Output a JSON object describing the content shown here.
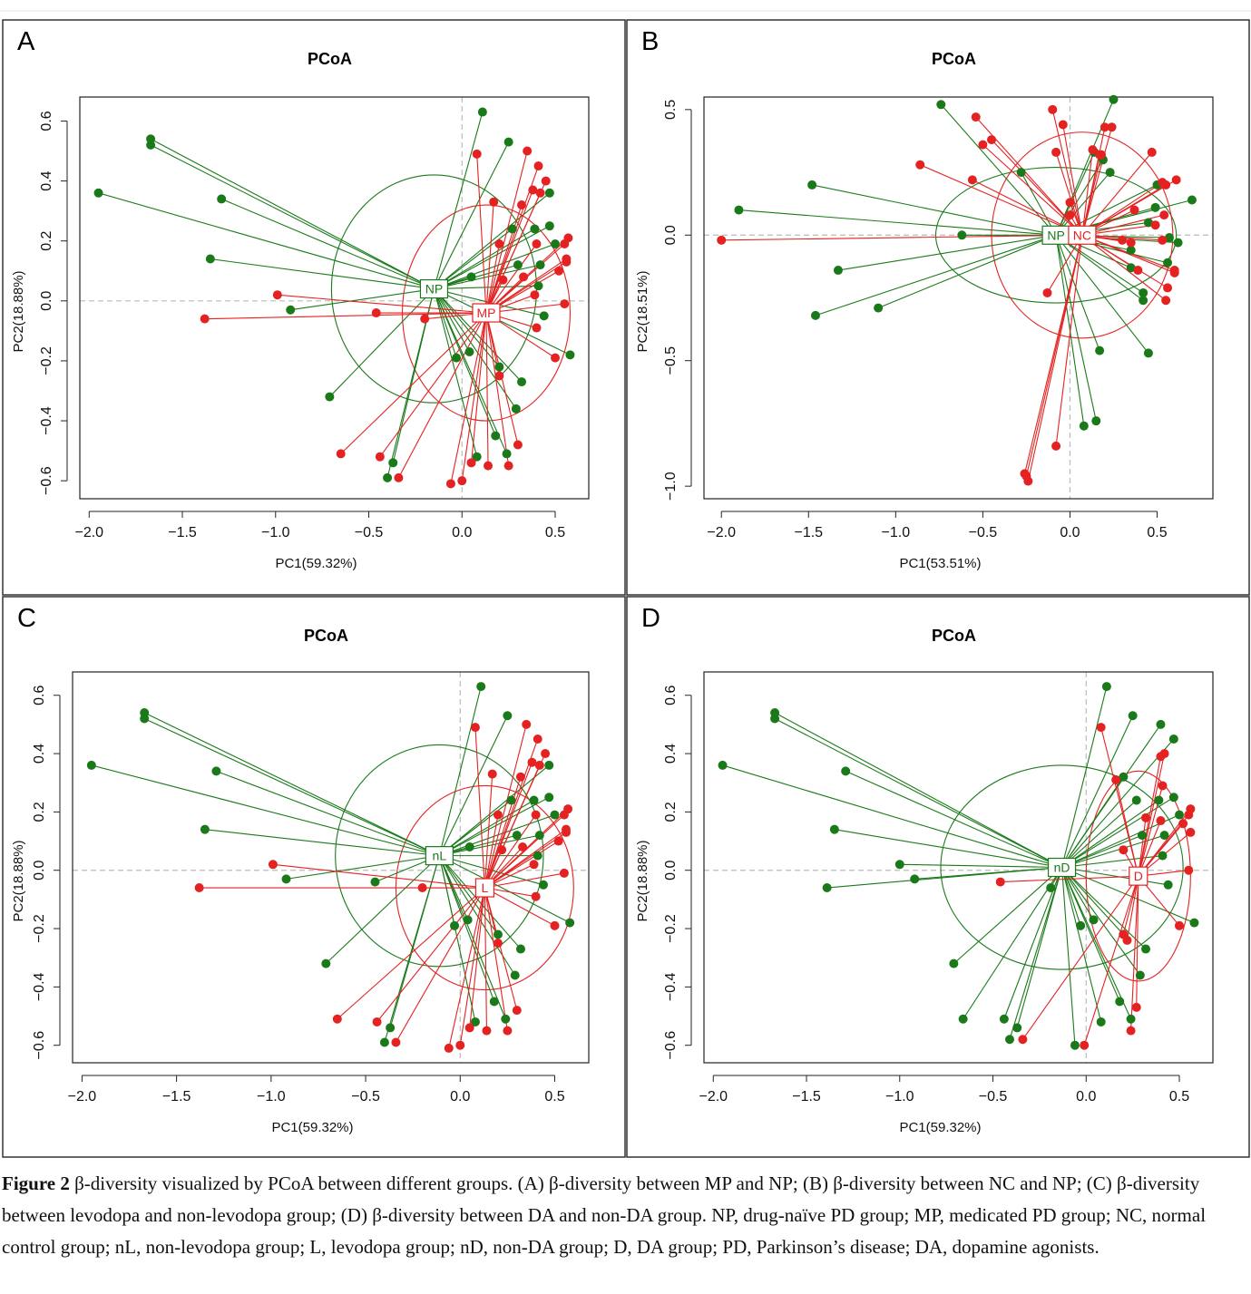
{
  "colors": {
    "group_green": "#1a7a1a",
    "group_red": "#e52222",
    "axis": "#222222",
    "guide": "#bbbbbb"
  },
  "panels": [
    {
      "letter": "A",
      "title": "PCoA",
      "xlabel": "PC1(59.32%)",
      "ylabel": "PC2(18.88%)",
      "xticks": [
        "−2.0",
        "−1.5",
        "−1.0",
        "−0.5",
        "0.0",
        "0.5"
      ],
      "yticks": [
        "−0.6",
        "−0.4",
        "−0.2",
        "0.0",
        "0.2",
        "0.4",
        "0.6"
      ],
      "groups": [
        "NP",
        "MP"
      ]
    },
    {
      "letter": "B",
      "title": "PCoA",
      "xlabel": "PC1(53.51%)",
      "ylabel": "PC2(18.51%)",
      "xticks": [
        "−2.0",
        "−1.5",
        "−1.0",
        "−0.5",
        "0.0",
        "0.5"
      ],
      "yticks": [
        "−1.0",
        "−0.5",
        "0.0",
        "0.5"
      ],
      "groups": [
        "NP",
        "NC"
      ]
    },
    {
      "letter": "C",
      "title": "PCoA",
      "xlabel": "PC1(59.32%)",
      "ylabel": "PC2(18.88%)",
      "xticks": [
        "−2.0",
        "−1.5",
        "−1.0",
        "−0.5",
        "0.0",
        "0.5"
      ],
      "yticks": [
        "−0.6",
        "−0.4",
        "−0.2",
        "0.0",
        "0.2",
        "0.4",
        "0.6"
      ],
      "groups": [
        "nL",
        "L"
      ]
    },
    {
      "letter": "D",
      "title": "PCoA",
      "xlabel": "PC1(59.32%)",
      "ylabel": "PC2(18.88%)",
      "xticks": [
        "−2.0",
        "−1.5",
        "−1.0",
        "−0.5",
        "0.0",
        "0.5"
      ],
      "yticks": [
        "−0.6",
        "−0.4",
        "−0.2",
        "0.0",
        "0.2",
        "0.4",
        "0.6"
      ],
      "groups": [
        "nD",
        "D"
      ]
    }
  ],
  "chart_data": [
    {
      "type": "scatter",
      "title": "PCoA",
      "xlabel": "PC1(59.32%)",
      "ylabel": "PC2(18.88%)",
      "xlim": [
        -2.05,
        0.68
      ],
      "ylim": [
        -0.66,
        0.68
      ],
      "grid": false,
      "series": [
        {
          "name": "NP",
          "centroid": [
            -0.15,
            0.04
          ],
          "ellipse": {
            "rx": 0.55,
            "ry": 0.38,
            "angle": 0
          },
          "x": [
            -1.67,
            -1.67,
            -1.95,
            -1.29,
            -1.35,
            -0.92,
            -0.71,
            -0.37,
            -0.4,
            0.11,
            0.25,
            0.47,
            0.27,
            0.39,
            0.47,
            0.42,
            0.41,
            0.5,
            0.3,
            0.2,
            0.32,
            0.29,
            0.24,
            0.18,
            0.04,
            0.05,
            -0.03,
            0.08,
            0.58,
            0.44
          ],
          "y": [
            0.54,
            0.52,
            0.36,
            0.34,
            0.14,
            -0.03,
            -0.32,
            -0.54,
            -0.59,
            0.63,
            0.53,
            0.36,
            0.24,
            0.24,
            0.25,
            0.12,
            0.05,
            0.19,
            0.12,
            -0.22,
            -0.27,
            -0.36,
            -0.51,
            -0.45,
            -0.17,
            0.08,
            -0.19,
            -0.52,
            -0.18,
            -0.05
          ]
        },
        {
          "name": "MP",
          "centroid": [
            0.13,
            -0.04
          ],
          "ellipse": {
            "rx": 0.45,
            "ry": 0.36,
            "angle": 0
          },
          "x": [
            -0.99,
            -1.38,
            -0.46,
            -0.2,
            -0.65,
            -0.44,
            -0.34,
            -0.06,
            0.0,
            0.14,
            0.25,
            0.3,
            0.05,
            0.08,
            0.35,
            0.41,
            0.45,
            0.42,
            0.57,
            0.55,
            0.52,
            0.56,
            0.4,
            0.17,
            0.2,
            0.22,
            0.32,
            0.4,
            0.33,
            0.2,
            0.5,
            0.38,
            0.39,
            0.55,
            0.56
          ],
          "y": [
            0.02,
            -0.06,
            -0.04,
            -0.06,
            -0.51,
            -0.52,
            -0.59,
            -0.61,
            -0.6,
            -0.55,
            -0.55,
            -0.48,
            -0.54,
            0.49,
            0.5,
            0.45,
            0.4,
            0.36,
            0.21,
            0.19,
            0.1,
            0.14,
            -0.09,
            0.33,
            0.19,
            0.07,
            0.32,
            0.19,
            0.08,
            -0.25,
            -0.19,
            0.37,
            0.02,
            -0.01,
            0.13
          ]
        }
      ]
    },
    {
      "type": "scatter",
      "title": "PCoA",
      "xlabel": "PC1(53.51%)",
      "ylabel": "PC2(18.51%)",
      "xlim": [
        -2.1,
        0.82
      ],
      "ylim": [
        -1.05,
        0.55
      ],
      "grid": false,
      "series": [
        {
          "name": "NP",
          "centroid": [
            -0.08,
            0.0
          ],
          "ellipse": {
            "rx": 0.69,
            "ry": 0.27,
            "angle": 0
          },
          "x": [
            -0.74,
            -1.9,
            -1.48,
            -1.33,
            -1.46,
            -1.1,
            -0.62,
            -0.28,
            0.25,
            0.23,
            0.19,
            0.45,
            0.5,
            0.62,
            0.7,
            0.14,
            0.35,
            0.56,
            0.42,
            0.17,
            0.45,
            0.08,
            0.15,
            0.35,
            0.57,
            0.49,
            0.42
          ],
          "y": [
            0.52,
            0.1,
            0.2,
            -0.14,
            -0.32,
            -0.29,
            0.0,
            0.25,
            0.54,
            0.25,
            0.3,
            0.05,
            0.2,
            -0.03,
            0.14,
            0.33,
            -0.13,
            -0.11,
            -0.23,
            -0.46,
            -0.47,
            -0.76,
            -0.74,
            -0.06,
            -0.01,
            0.11,
            -0.26
          ]
        },
        {
          "name": "NC",
          "centroid": [
            0.07,
            0.0
          ],
          "ellipse": {
            "rx": 0.52,
            "ry": 0.41,
            "angle": 0
          },
          "x": [
            -2.0,
            -0.86,
            -0.54,
            -0.5,
            -0.45,
            -0.56,
            -0.1,
            -0.08,
            -0.04,
            0.0,
            0.13,
            0.17,
            0.2,
            0.24,
            0.47,
            0.53,
            0.55,
            0.61,
            0.53,
            0.56,
            0.6,
            0.55,
            0.3,
            0.35,
            0.39,
            -0.26,
            -0.25,
            -0.24,
            -0.08,
            -0.13,
            0.0,
            0.18,
            0.37,
            0.54,
            0.6,
            0.49
          ],
          "y": [
            -0.02,
            0.28,
            0.47,
            0.36,
            0.38,
            0.22,
            0.5,
            0.33,
            0.44,
            0.13,
            0.34,
            0.32,
            0.43,
            0.43,
            0.33,
            0.21,
            0.2,
            0.22,
            -0.02,
            -0.21,
            -0.14,
            -0.26,
            -0.02,
            -0.03,
            -0.14,
            -0.95,
            -0.96,
            -0.98,
            -0.84,
            -0.23,
            0.08,
            0.32,
            0.1,
            0.08,
            -0.15,
            0.04
          ]
        }
      ]
    },
    {
      "type": "scatter",
      "title": "PCoA",
      "xlabel": "PC1(59.32%)",
      "ylabel": "PC2(18.88%)",
      "xlim": [
        -2.05,
        0.68
      ],
      "ylim": [
        -0.66,
        0.68
      ],
      "grid": false,
      "series": [
        {
          "name": "nL",
          "centroid": [
            -0.11,
            0.05
          ],
          "ellipse": {
            "rx": 0.55,
            "ry": 0.38,
            "angle": 0
          },
          "x": [
            -1.67,
            -1.67,
            -1.95,
            -1.29,
            -1.35,
            -0.92,
            -0.45,
            -0.71,
            -0.37,
            -0.4,
            0.11,
            0.25,
            0.47,
            0.27,
            0.39,
            0.47,
            0.42,
            0.41,
            0.5,
            0.3,
            0.2,
            0.32,
            0.29,
            0.24,
            0.18,
            0.04,
            0.05,
            -0.03,
            0.08,
            0.58,
            0.44
          ],
          "y": [
            0.54,
            0.52,
            0.36,
            0.34,
            0.14,
            -0.03,
            -0.04,
            -0.32,
            -0.54,
            -0.59,
            0.63,
            0.53,
            0.36,
            0.24,
            0.24,
            0.25,
            0.12,
            0.05,
            0.19,
            0.12,
            -0.22,
            -0.27,
            -0.36,
            -0.51,
            -0.45,
            -0.17,
            0.08,
            -0.19,
            -0.52,
            -0.18,
            -0.05
          ]
        },
        {
          "name": "L",
          "centroid": [
            0.13,
            -0.06
          ],
          "ellipse": {
            "rx": 0.47,
            "ry": 0.35,
            "angle": 0
          },
          "x": [
            -0.99,
            -1.38,
            -0.2,
            -0.65,
            -0.44,
            -0.34,
            -0.06,
            0.0,
            0.14,
            0.25,
            0.3,
            0.05,
            0.08,
            0.35,
            0.41,
            0.45,
            0.42,
            0.57,
            0.55,
            0.52,
            0.56,
            0.4,
            0.17,
            0.2,
            0.22,
            0.32,
            0.4,
            0.33,
            0.2,
            0.5,
            0.38,
            0.39,
            0.55,
            0.56
          ],
          "y": [
            0.02,
            -0.06,
            -0.06,
            -0.51,
            -0.52,
            -0.59,
            -0.61,
            -0.6,
            -0.55,
            -0.55,
            -0.48,
            -0.54,
            0.49,
            0.5,
            0.45,
            0.4,
            0.36,
            0.21,
            0.19,
            0.1,
            0.14,
            -0.09,
            0.33,
            0.19,
            0.07,
            0.32,
            0.19,
            0.08,
            -0.25,
            -0.19,
            0.37,
            0.02,
            -0.01,
            0.13
          ]
        }
      ]
    },
    {
      "type": "scatter",
      "title": "PCoA",
      "xlabel": "PC1(59.32%)",
      "ylabel": "PC2(18.88%)",
      "xlim": [
        -2.05,
        0.68
      ],
      "ylim": [
        -0.66,
        0.68
      ],
      "grid": false,
      "series": [
        {
          "name": "nD",
          "centroid": [
            -0.13,
            0.01
          ],
          "ellipse": {
            "rx": 0.65,
            "ry": 0.35,
            "angle": 0
          },
          "x": [
            -1.67,
            -1.67,
            -1.95,
            -1.29,
            -1.35,
            -1.0,
            -0.92,
            -1.39,
            -0.71,
            -0.66,
            -0.44,
            -0.41,
            -0.37,
            -0.06,
            -0.19,
            0.11,
            0.25,
            0.4,
            0.47,
            0.27,
            0.39,
            0.47,
            0.42,
            0.41,
            0.5,
            0.3,
            0.2,
            0.32,
            0.29,
            0.24,
            0.18,
            0.04,
            -0.03,
            0.08,
            0.58,
            0.44,
            0.2
          ],
          "y": [
            0.54,
            0.52,
            0.36,
            0.34,
            0.14,
            0.02,
            -0.03,
            -0.06,
            -0.32,
            -0.51,
            -0.51,
            -0.58,
            -0.54,
            -0.6,
            -0.06,
            0.63,
            0.53,
            0.5,
            0.45,
            0.24,
            0.24,
            0.25,
            0.12,
            0.05,
            0.19,
            0.12,
            -0.22,
            -0.27,
            -0.36,
            -0.51,
            -0.45,
            -0.17,
            -0.19,
            -0.52,
            -0.18,
            -0.05,
            0.32
          ]
        },
        {
          "name": "D",
          "centroid": [
            0.28,
            -0.02
          ],
          "ellipse": {
            "rx": 0.28,
            "ry": 0.36,
            "angle": 0
          },
          "x": [
            -0.46,
            -0.34,
            -0.01,
            0.08,
            0.16,
            0.2,
            0.27,
            0.24,
            0.22,
            0.4,
            0.42,
            0.41,
            0.56,
            0.55,
            0.52,
            0.56,
            0.55,
            0.5,
            0.2,
            0.32,
            0.28,
            0.4
          ],
          "y": [
            -0.04,
            -0.58,
            -0.6,
            0.49,
            0.31,
            -0.22,
            -0.47,
            -0.55,
            -0.24,
            0.39,
            0.4,
            0.29,
            0.21,
            0.19,
            0.16,
            0.13,
            0.0,
            -0.19,
            0.07,
            0.18,
            -0.01,
            0.17
          ]
        }
      ]
    }
  ],
  "caption": {
    "label": "Figure 2",
    "text": "  β-diversity visualized by PCoA between different groups. (A)  β-diversity between MP and NP; (B)  β-diversity between NC and NP; (C)  β-diversity between levodopa and non-levodopa group; (D)  β-diversity between DA and non-DA group. NP, drug-naïve PD group; MP, medicated PD group; NC, normal control group; nL, non-levodopa group; L, levodopa group; nD, non-DA group; D, DA group; PD, Parkinson’s disease; DA, dopamine agonists."
  }
}
